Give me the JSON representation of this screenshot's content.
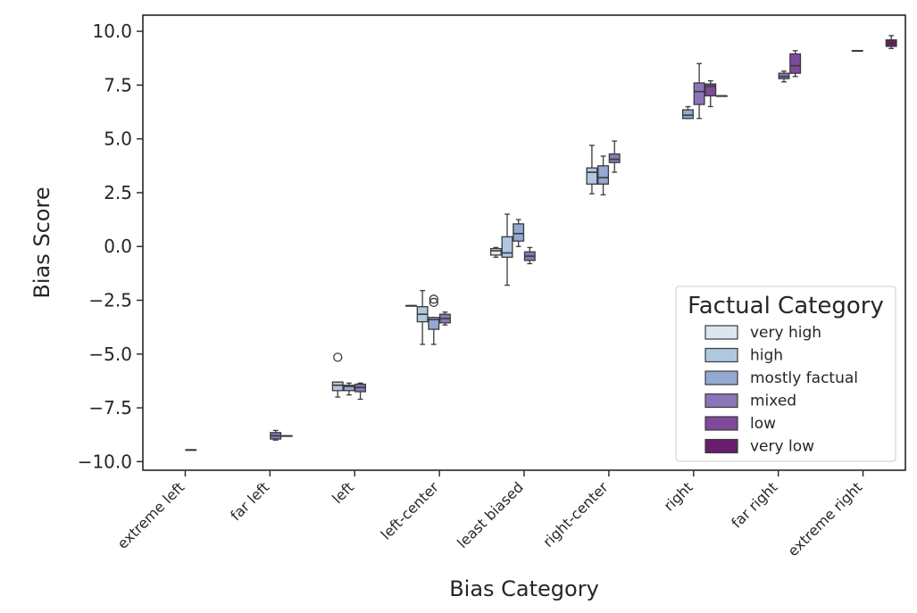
{
  "chart_data": {
    "type": "boxplot",
    "title": "",
    "xlabel": "Bias Category",
    "ylabel": "Bias Score",
    "ylim": [
      -10.4,
      10.75
    ],
    "yticks": [
      -10.0,
      -7.5,
      -5.0,
      -2.5,
      0.0,
      2.5,
      5.0,
      7.5,
      10.0
    ],
    "ytick_labels": [
      "−10.0",
      "−7.5",
      "−5.0",
      "−2.5",
      "0.0",
      "2.5",
      "5.0",
      "7.5",
      "10.0"
    ],
    "categories": [
      "extreme left",
      "far left",
      "left",
      "left-center",
      "least biased",
      "right-center",
      "right",
      "far right",
      "extreme right"
    ],
    "legend": {
      "title": "Factual Category",
      "position": "lower right",
      "entries": [
        "very high",
        "high",
        "mostly factual",
        "mixed",
        "low",
        "very low"
      ]
    },
    "hue_colors": {
      "very high": "#dce6f0",
      "high": "#b0c7e0",
      "mostly factual": "#94a9d1",
      "mixed": "#8b75b8",
      "low": "#7f4a9c",
      "very low": "#6a1d6c"
    },
    "boxes": [
      {
        "category": "extreme left",
        "hue": "mixed",
        "whislo": -9.45,
        "q1": -9.45,
        "med": -9.45,
        "q3": -9.45,
        "whishi": -9.45,
        "fliers": []
      },
      {
        "category": "far left",
        "hue": "mixed",
        "whislo": -9.0,
        "q1": -8.95,
        "med": -8.8,
        "q3": -8.65,
        "whishi": -8.55,
        "fliers": []
      },
      {
        "category": "far left",
        "hue": "low",
        "whislo": -8.8,
        "q1": -8.8,
        "med": -8.8,
        "q3": -8.8,
        "whishi": -8.8,
        "fliers": []
      },
      {
        "category": "left",
        "hue": "high",
        "whislo": -7.0,
        "q1": -6.7,
        "med": -6.45,
        "q3": -6.3,
        "whishi": -6.3,
        "fliers": [
          -5.15
        ]
      },
      {
        "category": "left",
        "hue": "mostly factual",
        "whislo": -6.9,
        "q1": -6.7,
        "med": -6.5,
        "q3": -6.45,
        "whishi": -6.35,
        "fliers": []
      },
      {
        "category": "left",
        "hue": "mixed",
        "whislo": -7.1,
        "q1": -6.75,
        "med": -6.55,
        "q3": -6.4,
        "whishi": -6.35,
        "fliers": []
      },
      {
        "category": "left-center",
        "hue": "very high",
        "whislo": -2.75,
        "q1": -2.75,
        "med": -2.75,
        "q3": -2.75,
        "whishi": -2.75,
        "fliers": []
      },
      {
        "category": "left-center",
        "hue": "high",
        "whislo": -4.55,
        "q1": -3.5,
        "med": -3.15,
        "q3": -2.8,
        "whishi": -2.05,
        "fliers": []
      },
      {
        "category": "left-center",
        "hue": "mostly factual",
        "whislo": -4.55,
        "q1": -3.85,
        "med": -3.4,
        "q3": -3.3,
        "whishi": -3.3,
        "fliers": [
          -2.45,
          -2.6
        ]
      },
      {
        "category": "left-center",
        "hue": "mixed",
        "whislo": -3.65,
        "q1": -3.55,
        "med": -3.35,
        "q3": -3.15,
        "whishi": -3.05,
        "fliers": []
      },
      {
        "category": "least biased",
        "hue": "very high",
        "whislo": -0.5,
        "q1": -0.4,
        "med": -0.2,
        "q3": -0.1,
        "whishi": -0.05,
        "fliers": []
      },
      {
        "category": "least biased",
        "hue": "high",
        "whislo": -1.8,
        "q1": -0.5,
        "med": -0.3,
        "q3": 0.45,
        "whishi": 1.5,
        "fliers": []
      },
      {
        "category": "least biased",
        "hue": "mostly factual",
        "whislo": 0.0,
        "q1": 0.25,
        "med": 0.6,
        "q3": 1.05,
        "whishi": 1.25,
        "fliers": []
      },
      {
        "category": "least biased",
        "hue": "mixed",
        "whislo": -0.8,
        "q1": -0.65,
        "med": -0.45,
        "q3": -0.25,
        "whishi": -0.05,
        "fliers": []
      },
      {
        "category": "right-center",
        "hue": "high",
        "whislo": 2.45,
        "q1": 2.9,
        "med": 3.45,
        "q3": 3.65,
        "whishi": 4.7,
        "fliers": []
      },
      {
        "category": "right-center",
        "hue": "mostly factual",
        "whislo": 2.4,
        "q1": 2.9,
        "med": 3.2,
        "q3": 3.75,
        "whishi": 4.2,
        "fliers": []
      },
      {
        "category": "right-center",
        "hue": "mixed",
        "whislo": 3.45,
        "q1": 3.9,
        "med": 4.05,
        "q3": 4.3,
        "whishi": 4.9,
        "fliers": []
      },
      {
        "category": "right",
        "hue": "mostly factual",
        "whislo": 5.95,
        "q1": 5.95,
        "med": 6.1,
        "q3": 6.35,
        "whishi": 6.5,
        "fliers": []
      },
      {
        "category": "right",
        "hue": "mixed",
        "whislo": 5.95,
        "q1": 6.6,
        "med": 7.2,
        "q3": 7.6,
        "whishi": 8.5,
        "fliers": []
      },
      {
        "category": "right",
        "hue": "low",
        "whislo": 6.5,
        "q1": 7.0,
        "med": 7.45,
        "q3": 7.55,
        "whishi": 7.7,
        "fliers": []
      },
      {
        "category": "right",
        "hue": "very low",
        "whislo": 7.0,
        "q1": 7.0,
        "med": 7.0,
        "q3": 7.0,
        "whishi": 7.0,
        "fliers": []
      },
      {
        "category": "far right",
        "hue": "mixed",
        "whislo": 7.65,
        "q1": 7.8,
        "med": 7.9,
        "q3": 8.05,
        "whishi": 8.15,
        "fliers": []
      },
      {
        "category": "far right",
        "hue": "low",
        "whislo": 7.9,
        "q1": 8.05,
        "med": 8.4,
        "q3": 8.95,
        "whishi": 9.1,
        "fliers": []
      },
      {
        "category": "extreme right",
        "hue": "mostly factual",
        "whislo": 9.1,
        "q1": 9.1,
        "med": 9.1,
        "q3": 9.1,
        "whishi": 9.1,
        "fliers": []
      },
      {
        "category": "extreme right",
        "hue": "very low",
        "whislo": 9.2,
        "q1": 9.3,
        "med": 9.45,
        "q3": 9.6,
        "whishi": 9.8,
        "fliers": []
      }
    ]
  }
}
